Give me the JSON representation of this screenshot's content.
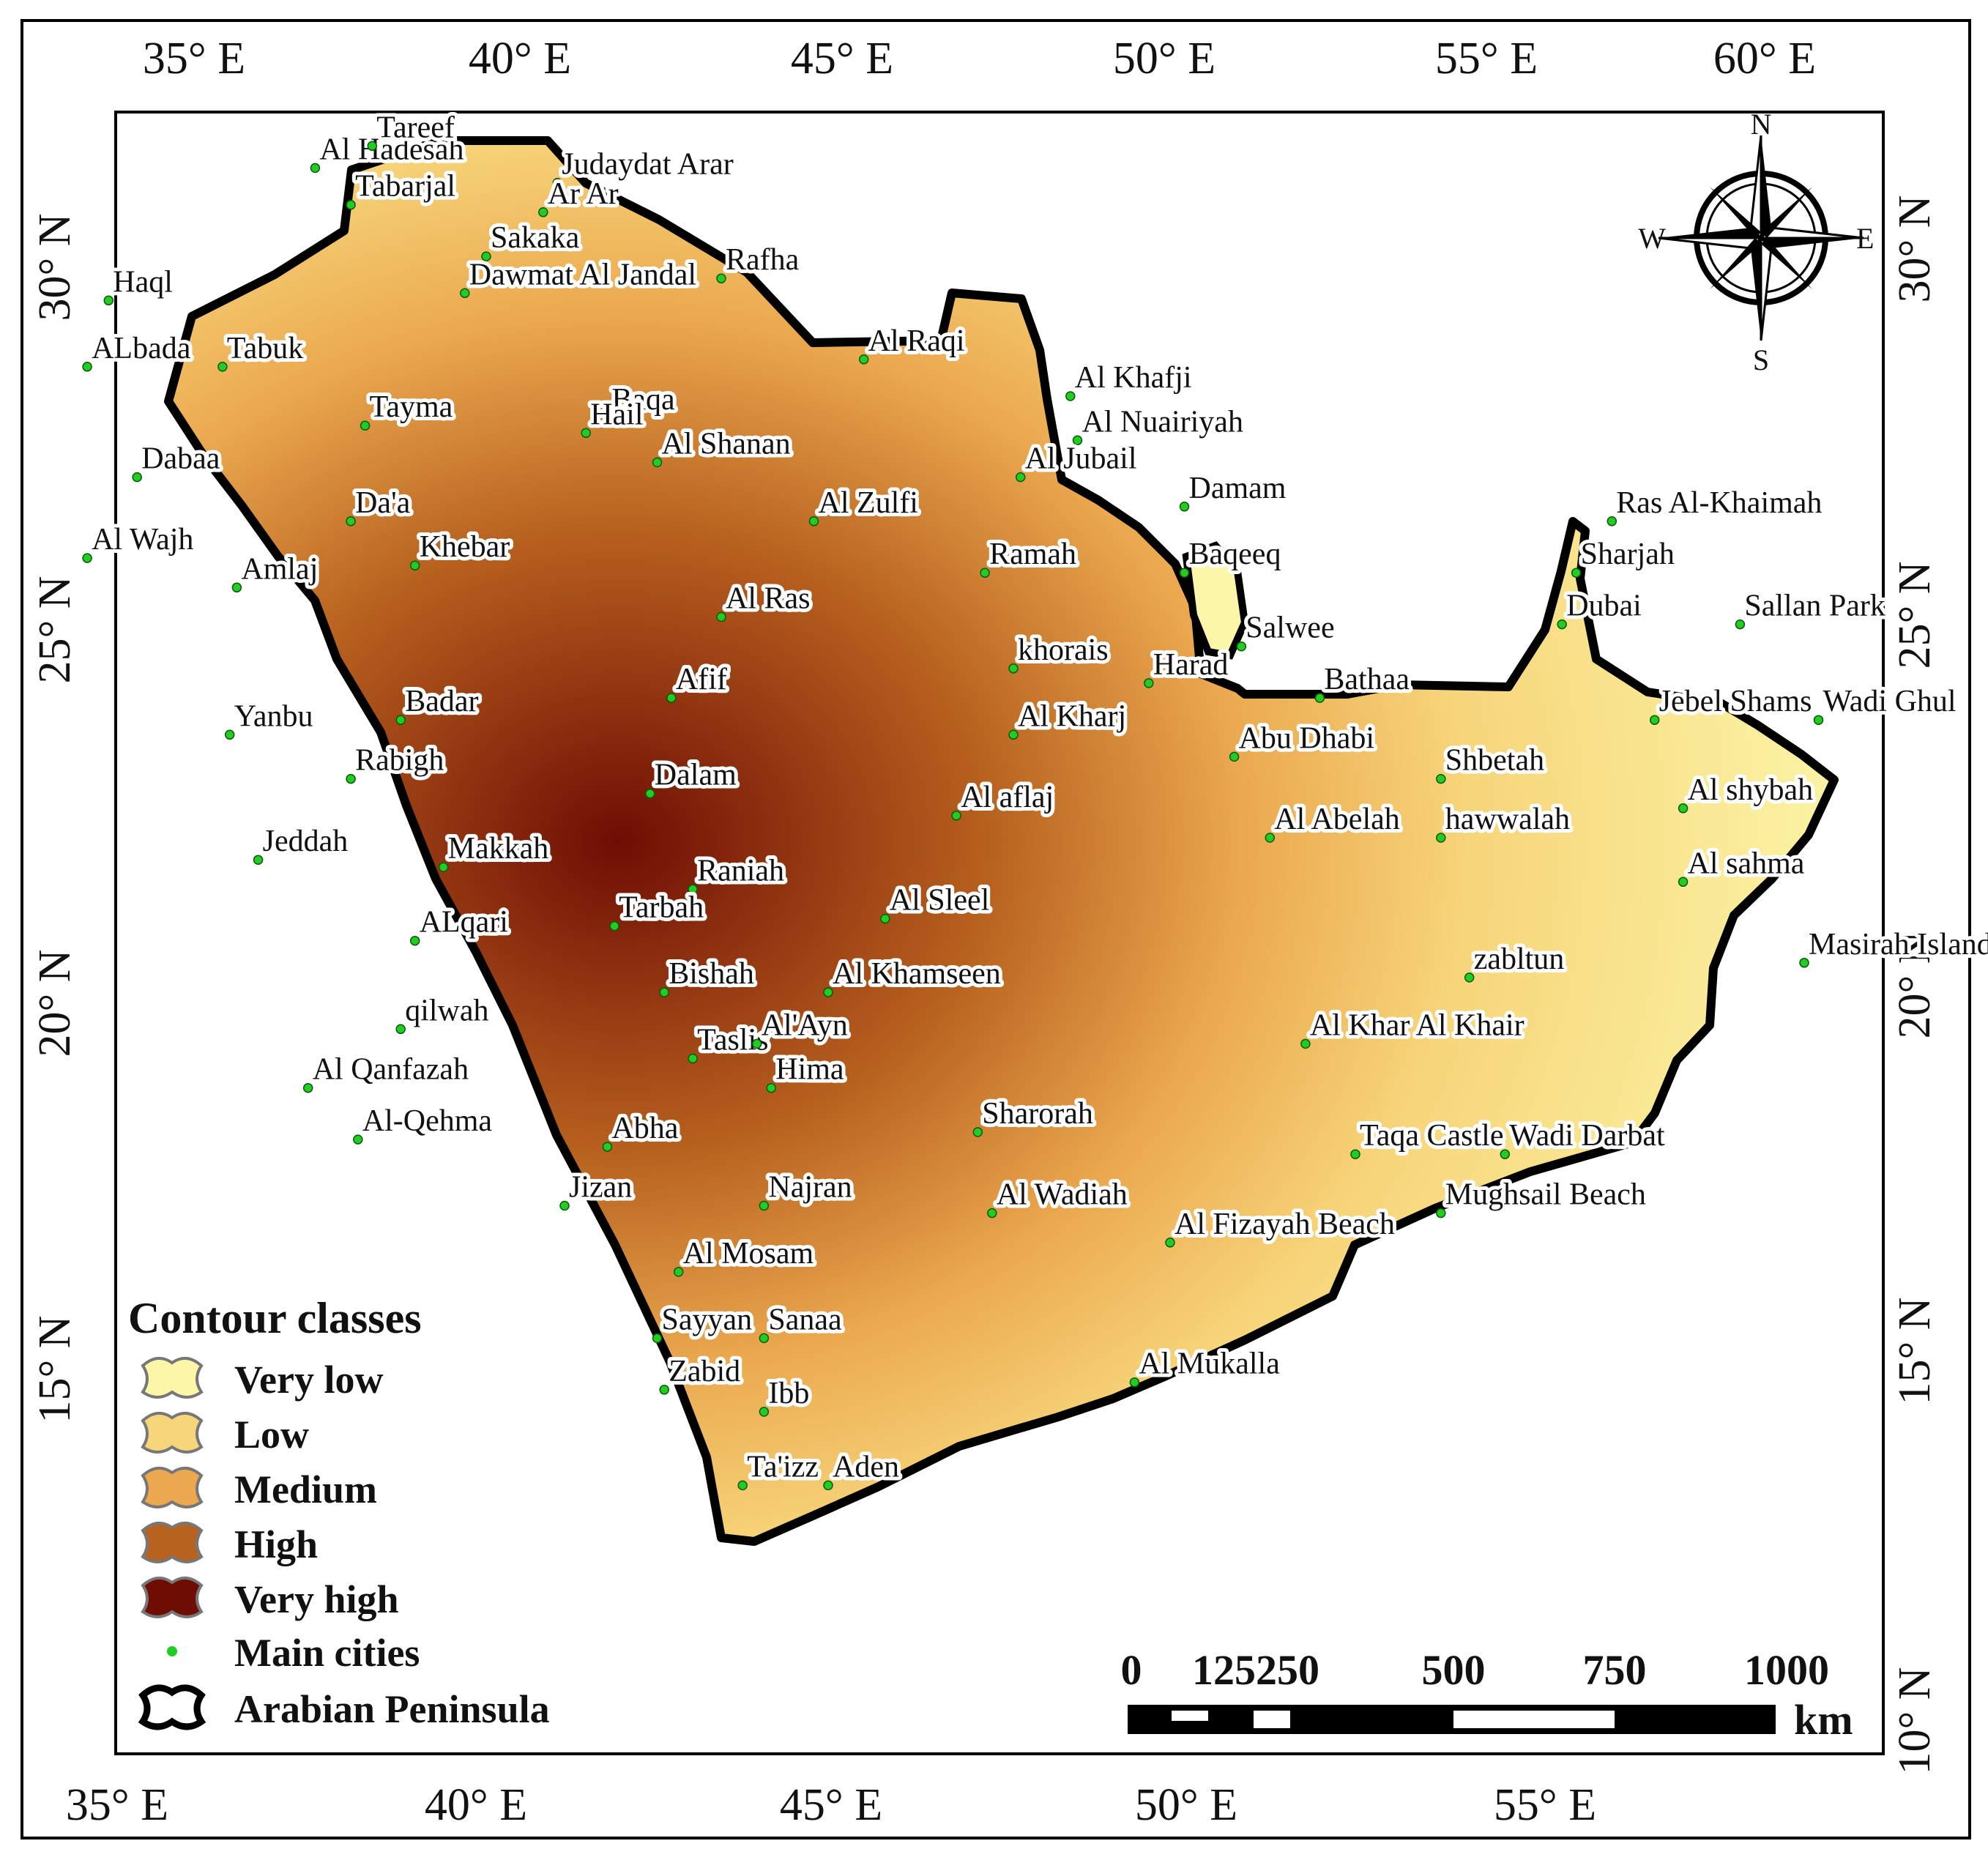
{
  "map": {
    "lon_ticks": [
      "35° E",
      "40° E",
      "45° E",
      "50° E",
      "55° E",
      "60° E"
    ],
    "lat_ticks": [
      "10° N",
      "15° N",
      "20° N",
      "25° N",
      "30° N"
    ],
    "legend": {
      "title": "Contour classes",
      "classes": [
        {
          "label": "Very low",
          "color": "#fbf6a8"
        },
        {
          "label": "Low",
          "color": "#f7d57a"
        },
        {
          "label": "Medium",
          "color": "#eba84e"
        },
        {
          "label": "High",
          "color": "#b8621f"
        },
        {
          "label": "Very high",
          "color": "#6e0d04"
        }
      ],
      "cities_label": "Main cities",
      "boundary_label": "Arabian Peninsula",
      "city_dot_color": "#22cc22"
    },
    "scale_bar": {
      "labels": [
        "0",
        "125250",
        "500",
        "750",
        "1000"
      ],
      "unit": "km"
    },
    "compass": {
      "n": "N",
      "s": "S",
      "e": "E",
      "w": "W"
    },
    "cities": [
      {
        "name": "Al Hadesah",
        "lon": 37.8,
        "lat": 31.1
      },
      {
        "name": "Tareef",
        "lon": 38.6,
        "lat": 31.4
      },
      {
        "name": "Judaydat Arar",
        "lon": 41.2,
        "lat": 30.9
      },
      {
        "name": "Tabarjal",
        "lon": 38.3,
        "lat": 30.6
      },
      {
        "name": "Ar Ar",
        "lon": 41.0,
        "lat": 30.5
      },
      {
        "name": "Sakaka",
        "lon": 40.2,
        "lat": 29.9
      },
      {
        "name": "Haql",
        "lon": 34.9,
        "lat": 29.3
      },
      {
        "name": "Rafha",
        "lon": 43.5,
        "lat": 29.6
      },
      {
        "name": "Dawmat Al Jandal",
        "lon": 39.9,
        "lat": 29.4
      },
      {
        "name": "ALbada",
        "lon": 34.6,
        "lat": 28.4
      },
      {
        "name": "Tabuk",
        "lon": 36.5,
        "lat": 28.4
      },
      {
        "name": "Al Raqi",
        "lon": 45.5,
        "lat": 28.5
      },
      {
        "name": "Al Khafji",
        "lon": 48.4,
        "lat": 28.0
      },
      {
        "name": "Baqa",
        "lon": 41.9,
        "lat": 27.7
      },
      {
        "name": "Tayma",
        "lon": 38.5,
        "lat": 27.6
      },
      {
        "name": "Hail",
        "lon": 41.6,
        "lat": 27.5
      },
      {
        "name": "Al Nuairiyah",
        "lon": 48.5,
        "lat": 27.4
      },
      {
        "name": "Al Shanan",
        "lon": 42.6,
        "lat": 27.1
      },
      {
        "name": "Dabaa",
        "lon": 35.3,
        "lat": 26.9
      },
      {
        "name": "Al Jubail",
        "lon": 47.7,
        "lat": 26.9
      },
      {
        "name": "Damam",
        "lon": 50.0,
        "lat": 26.5
      },
      {
        "name": "Da'a",
        "lon": 38.3,
        "lat": 26.3
      },
      {
        "name": "Al Zulfi",
        "lon": 44.8,
        "lat": 26.3
      },
      {
        "name": "Ras Al-Khaimah",
        "lon": 56.0,
        "lat": 26.3
      },
      {
        "name": "Al Wajh",
        "lon": 34.6,
        "lat": 25.8
      },
      {
        "name": "Khebar",
        "lon": 39.2,
        "lat": 25.7
      },
      {
        "name": "Ramah",
        "lon": 47.2,
        "lat": 25.6
      },
      {
        "name": "Baqeeq",
        "lon": 50.0,
        "lat": 25.6
      },
      {
        "name": "Sharjah",
        "lon": 55.5,
        "lat": 25.6
      },
      {
        "name": "Amlaj",
        "lon": 36.7,
        "lat": 25.4
      },
      {
        "name": "Al Ras",
        "lon": 43.5,
        "lat": 25.0
      },
      {
        "name": "Dubai",
        "lon": 55.3,
        "lat": 24.9
      },
      {
        "name": "Sallan Park",
        "lon": 57.8,
        "lat": 24.9
      },
      {
        "name": "Salwee",
        "lon": 50.8,
        "lat": 24.6
      },
      {
        "name": "khorais",
        "lon": 47.6,
        "lat": 24.3
      },
      {
        "name": "Harad",
        "lon": 49.5,
        "lat": 24.1
      },
      {
        "name": "Afif",
        "lon": 42.8,
        "lat": 23.9
      },
      {
        "name": "Bathaa",
        "lon": 51.9,
        "lat": 23.9
      },
      {
        "name": "Jebel Shams",
        "lon": 56.6,
        "lat": 23.6
      },
      {
        "name": "Wadi Ghul",
        "lon": 58.9,
        "lat": 23.6
      },
      {
        "name": "Yanbu",
        "lon": 36.6,
        "lat": 23.4
      },
      {
        "name": "Badar",
        "lon": 39.0,
        "lat": 23.6
      },
      {
        "name": "Al Kharj",
        "lon": 47.6,
        "lat": 23.4
      },
      {
        "name": "Abu Dhabi",
        "lon": 50.7,
        "lat": 23.1
      },
      {
        "name": "Rabigh",
        "lon": 38.3,
        "lat": 22.8
      },
      {
        "name": "Shbetah",
        "lon": 53.6,
        "lat": 22.8
      },
      {
        "name": "Dalam",
        "lon": 42.5,
        "lat": 22.6
      },
      {
        "name": "Al shybah",
        "lon": 57.0,
        "lat": 22.4
      },
      {
        "name": "Al aflaj",
        "lon": 46.8,
        "lat": 22.3
      },
      {
        "name": "Al Abelah",
        "lon": 51.2,
        "lat": 22.0
      },
      {
        "name": "hawwalah",
        "lon": 53.6,
        "lat": 22.0
      },
      {
        "name": "Jeddah",
        "lon": 37.0,
        "lat": 21.7
      },
      {
        "name": "Makkah",
        "lon": 39.6,
        "lat": 21.6
      },
      {
        "name": "Al sahma",
        "lon": 57.0,
        "lat": 21.4
      },
      {
        "name": "Raniah",
        "lon": 43.1,
        "lat": 21.3
      },
      {
        "name": "Tarbah",
        "lon": 42.0,
        "lat": 20.8
      },
      {
        "name": "Al Sleel",
        "lon": 45.8,
        "lat": 20.9
      },
      {
        "name": "ALqari",
        "lon": 39.2,
        "lat": 20.6
      },
      {
        "name": "Masirah Island",
        "lon": 58.7,
        "lat": 20.3
      },
      {
        "name": "zabltun",
        "lon": 54.0,
        "lat": 20.1
      },
      {
        "name": "Bishah",
        "lon": 42.7,
        "lat": 19.9
      },
      {
        "name": "Al Khamseen",
        "lon": 45.0,
        "lat": 19.9
      },
      {
        "name": "qilwah",
        "lon": 39.0,
        "lat": 19.4
      },
      {
        "name": "Al Khar Al Khair",
        "lon": 51.7,
        "lat": 19.2
      },
      {
        "name": "Taslis",
        "lon": 43.1,
        "lat": 19.0
      },
      {
        "name": "Al'Ayn",
        "lon": 44.0,
        "lat": 19.2
      },
      {
        "name": "Al Qanfazah",
        "lon": 37.7,
        "lat": 18.6
      },
      {
        "name": "Hima",
        "lon": 44.2,
        "lat": 18.6
      },
      {
        "name": "Al-Qehma",
        "lon": 38.4,
        "lat": 17.9
      },
      {
        "name": "Abha",
        "lon": 41.9,
        "lat": 17.8
      },
      {
        "name": "Sharorah",
        "lon": 47.1,
        "lat": 18.0
      },
      {
        "name": "Taqa Castle",
        "lon": 52.4,
        "lat": 17.7
      },
      {
        "name": "Wadi Darbat",
        "lon": 54.5,
        "lat": 17.7
      },
      {
        "name": "Jizan",
        "lon": 41.3,
        "lat": 17.0
      },
      {
        "name": "Najran",
        "lon": 44.1,
        "lat": 17.0
      },
      {
        "name": "Al Wadiah",
        "lon": 47.3,
        "lat": 16.9
      },
      {
        "name": "Mughsail Beach",
        "lon": 53.6,
        "lat": 16.9
      },
      {
        "name": "Al Fizayah Beach",
        "lon": 49.8,
        "lat": 16.5
      },
      {
        "name": "Al Mosam",
        "lon": 42.9,
        "lat": 16.1
      },
      {
        "name": "Sayyan",
        "lon": 42.6,
        "lat": 15.2
      },
      {
        "name": "Sanaa",
        "lon": 44.1,
        "lat": 15.2
      },
      {
        "name": "Al Mukalla",
        "lon": 49.3,
        "lat": 14.6
      },
      {
        "name": "Zabid",
        "lon": 42.7,
        "lat": 14.5
      },
      {
        "name": "Ibb",
        "lon": 44.1,
        "lat": 14.2
      },
      {
        "name": "Ta'izz",
        "lon": 43.8,
        "lat": 13.2
      },
      {
        "name": "Aden",
        "lon": 45.0,
        "lat": 13.2
      }
    ]
  }
}
